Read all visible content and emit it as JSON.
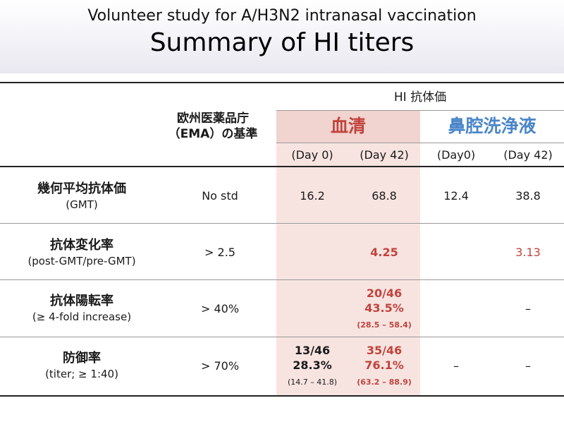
{
  "header": {
    "subtitle": "Volunteer study for A/H3N2 intranasal vaccination",
    "title": "Summary of HI titers"
  },
  "table": {
    "ema_header_line1": "欧州医薬品庁",
    "ema_header_line2": "（EMA）の基準",
    "hi_header": "HI 抗体価",
    "group_serum": "血清",
    "group_nasal": "鼻腔洗浄液",
    "col_serum_day0": "(Day 0)",
    "col_serum_day42": "(Day 42)",
    "col_nasal_day0": "(Day0)",
    "col_nasal_day42": "(Day 42)",
    "rows": [
      {
        "label": "幾何平均抗体価",
        "sublabel": "(GMT)",
        "ema": "No std",
        "serum_day0": "16.2",
        "serum_day42": "68.8",
        "nasal_day0": "12.4",
        "nasal_day42": "38.8"
      },
      {
        "label": "抗体変化率",
        "sublabel": "(post-GMT/pre-GMT)",
        "ema": "> 2.5",
        "serum_day42": "4.25",
        "nasal_day42": "3.13"
      },
      {
        "label": "抗体陽転率",
        "sublabel": "(≥ 4-fold increase)",
        "ema": "> 40%",
        "serum_day42_line1": "20/46",
        "serum_day42_line2": "43.5%",
        "serum_day42_ci": "(28.5 – 58.4)",
        "nasal_day42": "–"
      },
      {
        "label": "防御率",
        "sublabel": "(titer; ≥ 1:40)",
        "ema": "> 70%",
        "serum_day0_line1": "13/46",
        "serum_day0_line2": "28.3%",
        "serum_day0_ci": "(14.7 – 41.8)",
        "serum_day42_line1": "35/46",
        "serum_day42_line2": "76.1%",
        "serum_day42_ci": "(63.2 – 88.9)",
        "nasal_day0": "–",
        "nasal_day42": "–"
      }
    ]
  }
}
